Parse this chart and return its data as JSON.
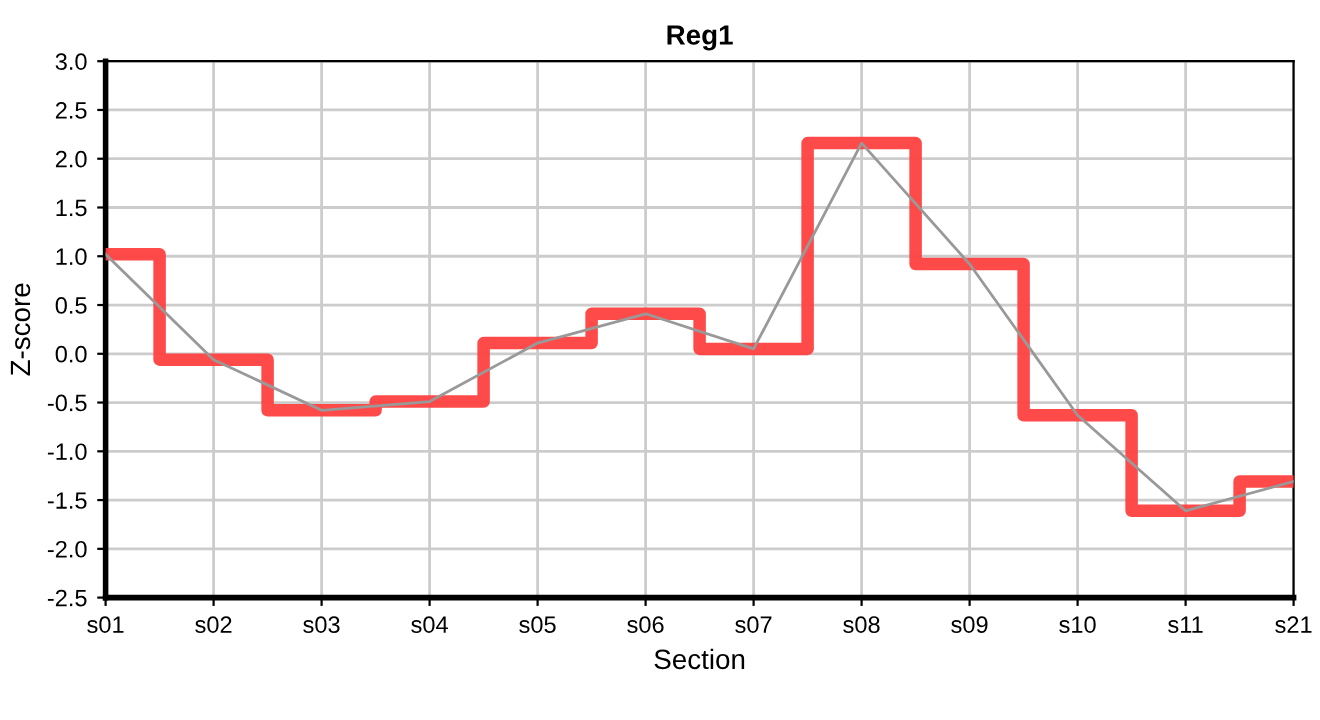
{
  "chart_data": {
    "type": "step",
    "title": "Reg1",
    "xlabel": "Section",
    "ylabel": "Z-score",
    "categories": [
      "s01",
      "s02",
      "s03",
      "s04",
      "s05",
      "s06",
      "s07",
      "s08",
      "s09",
      "s10",
      "s11",
      "s21"
    ],
    "series": [
      {
        "color": "#ff4040",
        "values": [
          1.02,
          -0.06,
          -0.58,
          -0.49,
          0.11,
          0.41,
          0.05,
          2.16,
          0.92,
          -0.63,
          -1.61,
          -1.31
        ]
      },
      {
        "type": "line",
        "color": "#999999",
        "values": [
          1.02,
          -0.06,
          -0.58,
          -0.49,
          0.11,
          0.41,
          0.05,
          2.16,
          0.92,
          -0.63,
          -1.61,
          -1.31
        ]
      }
    ],
    "ylim": [
      -2.5,
      3.0
    ],
    "yticks": [
      -2.5,
      {
        "value": -2,
        "label": "-2.0"
      },
      -1.5,
      {
        "value": -1,
        "label": "-1.0"
      },
      -0.5,
      {
        "value": 0,
        "label": "0.0"
      },
      0.5,
      {
        "value": 1,
        "label": "1.0"
      },
      1.5,
      {
        "value": 2,
        "label": "2.0"
      },
      2.5,
      {
        "value": 3,
        "label": "3.0"
      }
    ],
    "grid": true
  }
}
